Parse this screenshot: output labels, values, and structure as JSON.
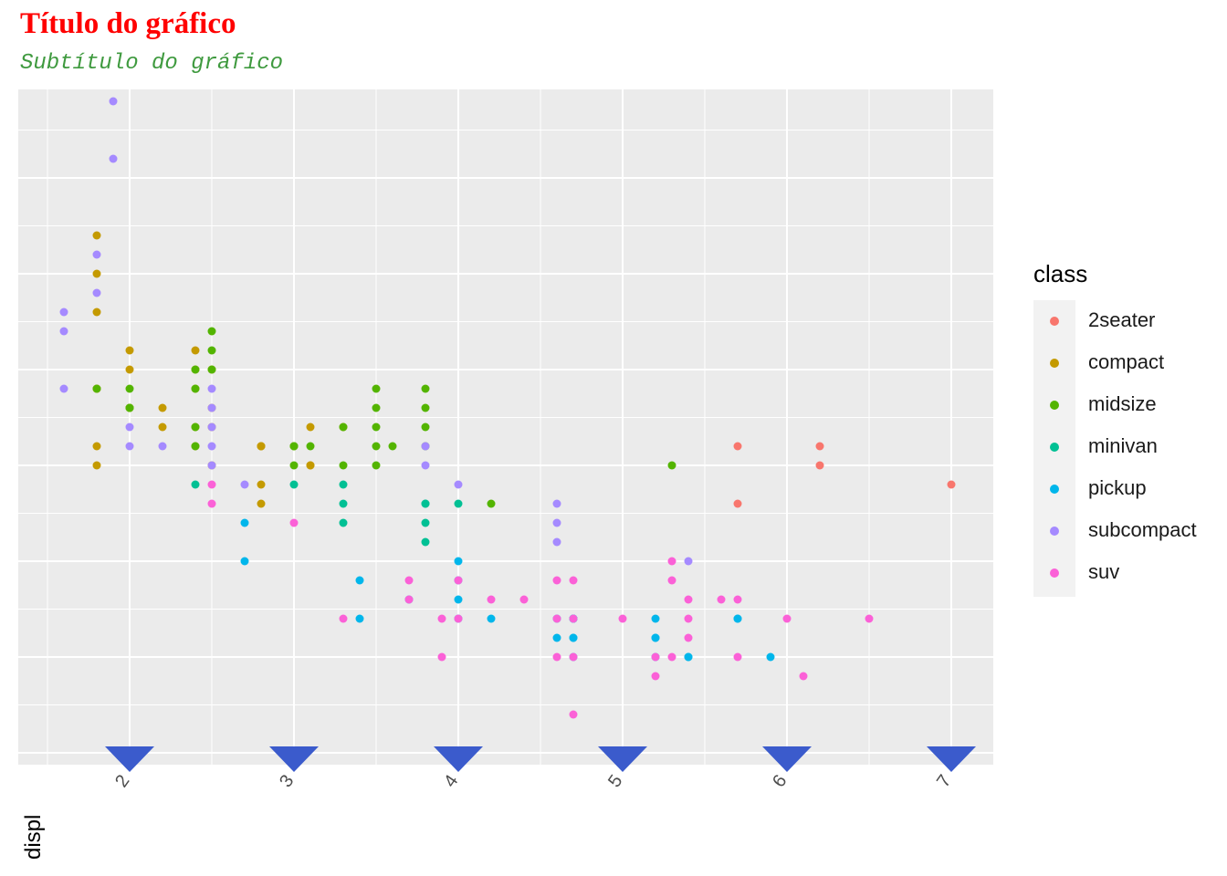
{
  "title": "Título do gráfico",
  "subtitle": "Subtítulo do gráfico",
  "colors": {
    "2seater": "#F8766D",
    "compact": "#C49A00",
    "midsize": "#53B400",
    "minivan": "#00C094",
    "pickup": "#00B6EB",
    "subcompact": "#A58AFF",
    "suv": "#FB61D7",
    "marker": "#3b5bcc",
    "panel": "#ebebeb"
  },
  "chart_data": {
    "type": "scatter",
    "title": "Título do gráfico",
    "subtitle": "Subtítulo do gráfico",
    "xlabel": "displ",
    "x_ticks": [
      "2",
      "3",
      "4",
      "5",
      "6",
      "7"
    ],
    "xlim": [
      1.5,
      7.3
    ],
    "ylim": [
      10.5,
      45.5
    ],
    "grid": true,
    "legend_title": "class",
    "legend_position": "right",
    "legend": [
      "2seater",
      "compact",
      "midsize",
      "minivan",
      "pickup",
      "subcompact",
      "suv"
    ],
    "series": [
      {
        "name": "2seater",
        "points": [
          [
            5.7,
            26
          ],
          [
            5.7,
            23
          ],
          [
            6.2,
            26
          ],
          [
            6.2,
            25
          ],
          [
            7.0,
            24
          ]
        ]
      },
      {
        "name": "compact",
        "points": [
          [
            1.8,
            29
          ],
          [
            1.8,
            29
          ],
          [
            2.0,
            31
          ],
          [
            2.0,
            30
          ],
          [
            2.8,
            26
          ],
          [
            2.8,
            26
          ],
          [
            3.1,
            27
          ],
          [
            1.8,
            26
          ],
          [
            1.8,
            25
          ],
          [
            2.0,
            28
          ],
          [
            2.0,
            28
          ],
          [
            2.8,
            26
          ],
          [
            3.1,
            25
          ],
          [
            3.1,
            25
          ],
          [
            2.2,
            28
          ],
          [
            2.2,
            27
          ],
          [
            2.4,
            26
          ],
          [
            2.4,
            27
          ],
          [
            3.0,
            26
          ],
          [
            3.3,
            27
          ],
          [
            2.5,
            28
          ],
          [
            2.5,
            30
          ],
          [
            2.5,
            27
          ],
          [
            2.5,
            25
          ],
          [
            1.8,
            33
          ],
          [
            1.8,
            35
          ],
          [
            1.8,
            37
          ],
          [
            2.4,
            31
          ],
          [
            2.4,
            29
          ],
          [
            2.8,
            24
          ],
          [
            2.8,
            23
          ],
          [
            2.4,
            30
          ]
        ]
      },
      {
        "name": "midsize",
        "points": [
          [
            2.4,
            27
          ],
          [
            3.0,
            26
          ],
          [
            3.3,
            25
          ],
          [
            3.3,
            27
          ],
          [
            3.8,
            28
          ],
          [
            3.8,
            29
          ],
          [
            3.8,
            26
          ],
          [
            3.5,
            25
          ],
          [
            2.5,
            30
          ],
          [
            2.5,
            31
          ],
          [
            3.5,
            26
          ],
          [
            3.5,
            27
          ],
          [
            3.5,
            28
          ],
          [
            3.0,
            26
          ],
          [
            2.0,
            29
          ],
          [
            2.0,
            28
          ],
          [
            3.1,
            26
          ],
          [
            3.8,
            27
          ],
          [
            2.4,
            29
          ],
          [
            2.4,
            30
          ],
          [
            3.5,
            29
          ],
          [
            3.6,
            26
          ],
          [
            4.2,
            23
          ],
          [
            5.3,
            25
          ],
          [
            2.0,
            28
          ],
          [
            2.5,
            32
          ],
          [
            2.4,
            26
          ],
          [
            3.0,
            25
          ],
          [
            1.8,
            29
          ]
        ]
      },
      {
        "name": "minivan",
        "points": [
          [
            2.4,
            24
          ],
          [
            3.0,
            24
          ],
          [
            3.3,
            22
          ],
          [
            3.3,
            24
          ],
          [
            3.8,
            22
          ],
          [
            3.8,
            23
          ],
          [
            3.8,
            21
          ],
          [
            4.0,
            23
          ],
          [
            3.8,
            23
          ],
          [
            3.3,
            23
          ]
        ]
      },
      {
        "name": "pickup",
        "points": [
          [
            2.7,
            20
          ],
          [
            2.7,
            22
          ],
          [
            3.4,
            19
          ],
          [
            3.4,
            17
          ],
          [
            3.7,
            18
          ],
          [
            4.0,
            20
          ],
          [
            4.0,
            18
          ],
          [
            4.7,
            17
          ],
          [
            4.7,
            15
          ],
          [
            4.7,
            16
          ],
          [
            4.7,
            17
          ],
          [
            5.2,
            17
          ],
          [
            5.2,
            15
          ],
          [
            5.2,
            16
          ],
          [
            5.9,
            15
          ],
          [
            4.2,
            17
          ],
          [
            4.6,
            17
          ],
          [
            4.6,
            16
          ],
          [
            5.4,
            15
          ],
          [
            5.4,
            15
          ],
          [
            5.7,
            17
          ],
          [
            4.0,
            19
          ],
          [
            4.7,
            16
          ],
          [
            5.7,
            17
          ],
          [
            4.0,
            17
          ],
          [
            4.7,
            17
          ],
          [
            5.2,
            16
          ]
        ]
      },
      {
        "name": "subcompact",
        "points": [
          [
            1.6,
            33
          ],
          [
            1.6,
            32
          ],
          [
            1.6,
            29
          ],
          [
            1.9,
            41
          ],
          [
            1.9,
            44
          ],
          [
            1.8,
            36
          ],
          [
            1.8,
            34
          ],
          [
            2.0,
            27
          ],
          [
            2.0,
            26
          ],
          [
            2.5,
            29
          ],
          [
            2.5,
            28
          ],
          [
            2.5,
            27
          ],
          [
            2.7,
            24
          ],
          [
            3.8,
            25
          ],
          [
            3.8,
            26
          ],
          [
            4.0,
            24
          ],
          [
            4.6,
            23
          ],
          [
            4.6,
            22
          ],
          [
            5.4,
            20
          ],
          [
            4.6,
            21
          ],
          [
            2.2,
            26
          ],
          [
            2.5,
            26
          ],
          [
            2.5,
            25
          ]
        ]
      },
      {
        "name": "suv",
        "points": [
          [
            2.5,
            24
          ],
          [
            2.5,
            23
          ],
          [
            3.0,
            22
          ],
          [
            3.3,
            17
          ],
          [
            3.7,
            19
          ],
          [
            3.7,
            18
          ],
          [
            3.9,
            17
          ],
          [
            3.9,
            15
          ],
          [
            4.0,
            19
          ],
          [
            4.0,
            17
          ],
          [
            4.2,
            18
          ],
          [
            4.4,
            18
          ],
          [
            4.6,
            19
          ],
          [
            4.6,
            17
          ],
          [
            4.7,
            12
          ],
          [
            4.7,
            19
          ],
          [
            4.7,
            17
          ],
          [
            4.7,
            15
          ],
          [
            5.0,
            17
          ],
          [
            5.2,
            15
          ],
          [
            5.2,
            14
          ],
          [
            5.3,
            19
          ],
          [
            5.3,
            20
          ],
          [
            5.3,
            15
          ],
          [
            5.4,
            18
          ],
          [
            5.4,
            17
          ],
          [
            5.4,
            16
          ],
          [
            5.6,
            18
          ],
          [
            5.7,
            18
          ],
          [
            5.7,
            15
          ],
          [
            6.0,
            17
          ],
          [
            6.1,
            14
          ],
          [
            6.5,
            17
          ],
          [
            4.6,
            15
          ]
        ]
      }
    ]
  }
}
